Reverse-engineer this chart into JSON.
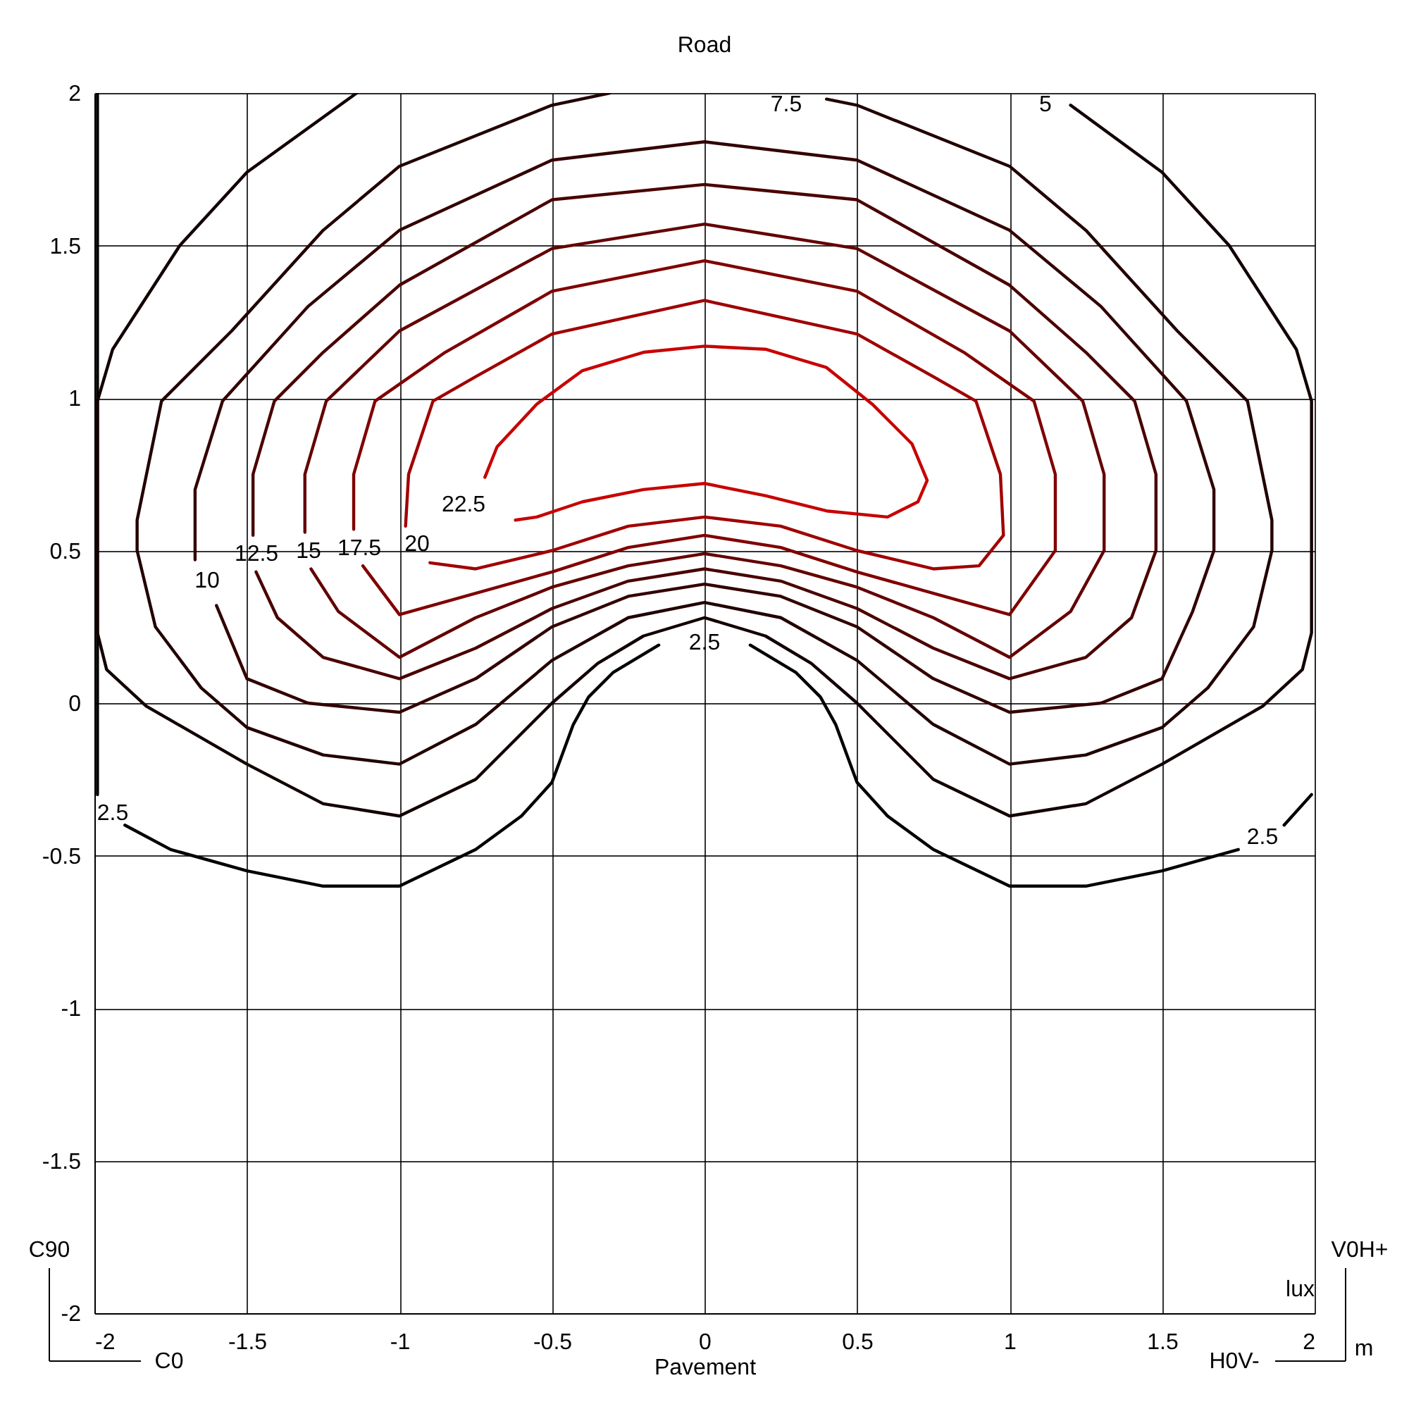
{
  "chart_data": {
    "type": "line",
    "title": "Road",
    "xlabel": "Pavement",
    "xlim": [
      -2,
      2
    ],
    "ylim": [
      -2,
      2
    ],
    "xticks": [
      -2,
      -1.5,
      -1,
      -0.5,
      0,
      0.5,
      1,
      1.5,
      2
    ],
    "yticks": [
      -2,
      -1.5,
      -1,
      -0.5,
      0,
      0.5,
      1,
      1.5,
      2
    ],
    "grid": true,
    "line_style": "solid",
    "series": [
      {
        "color": "#000000",
        "x": [
          -1.99,
          -1.99,
          -1.95,
          -1.9,
          -1.75,
          -1.5,
          -1.25,
          -1.0,
          -0.75,
          -0.6,
          -0.5,
          -0.43,
          -0.38,
          -0.3,
          -0.15,
          0,
          0.15,
          0.3,
          0.38,
          0.43,
          0.5,
          0.6,
          0.75,
          1.0,
          1.25,
          1.5,
          1.75,
          1.83,
          1.9,
          1.99
        ],
        "values": [
          2.0,
          -0.3,
          null,
          -0.4,
          -0.48,
          -0.55,
          -0.6,
          -0.6,
          -0.48,
          -0.37,
          -0.26,
          -0.07,
          0.02,
          0.1,
          0.19,
          null,
          0.19,
          0.1,
          0.02,
          -0.07,
          -0.26,
          -0.37,
          -0.48,
          -0.6,
          -0.6,
          -0.55,
          -0.48,
          null,
          -0.4,
          -0.3
        ]
      },
      {
        "color": "#120000",
        "x": [
          -1.14,
          -1.5,
          -1.72,
          -1.94,
          -1.99,
          -1.99,
          -1.96,
          -1.83,
          -1.5,
          -1.25,
          -1.0,
          -0.75,
          -0.5,
          -0.35,
          -0.2,
          0,
          0.2,
          0.35,
          0.5,
          0.75,
          1.0,
          1.25,
          1.5,
          1.83,
          1.96,
          1.99,
          1.99,
          1.94,
          1.72,
          1.5,
          1.2
        ],
        "values": [
          2.0,
          1.74,
          1.5,
          1.16,
          0.99,
          0.23,
          0.11,
          -0.01,
          -0.2,
          -0.33,
          -0.37,
          -0.25,
          0.0,
          0.13,
          0.22,
          0.28,
          0.22,
          0.13,
          0.0,
          -0.25,
          -0.37,
          -0.33,
          -0.2,
          -0.01,
          0.11,
          0.23,
          0.99,
          1.16,
          1.5,
          1.74,
          1.96
        ]
      },
      {
        "color": "#220000",
        "x": [
          -0.31,
          -0.5,
          -1.0,
          -1.25,
          -1.55,
          -1.78,
          -1.86,
          -1.86,
          -1.8,
          -1.65,
          -1.5,
          -1.25,
          -1.0,
          -0.75,
          -0.5,
          -0.25,
          0,
          0.25,
          0.5,
          0.75,
          1.0,
          1.25,
          1.5,
          1.65,
          1.8,
          1.86,
          1.86,
          1.78,
          1.55,
          1.25,
          1.0,
          0.5,
          0.4
        ],
        "values": [
          2.0,
          1.96,
          1.76,
          1.55,
          1.22,
          0.99,
          0.6,
          0.5,
          0.25,
          0.05,
          -0.08,
          -0.17,
          -0.2,
          -0.07,
          0.14,
          0.28,
          0.33,
          0.28,
          0.14,
          -0.07,
          -0.2,
          -0.17,
          -0.08,
          0.05,
          0.25,
          0.5,
          0.6,
          0.99,
          1.22,
          1.55,
          1.76,
          1.96,
          1.98
        ]
      },
      {
        "color": "#330000",
        "x": [
          -1.6,
          -1.5,
          -1.3,
          -1.0,
          -0.75,
          -0.5,
          -0.25,
          0,
          0.25,
          0.5,
          0.75,
          1.0,
          1.3,
          1.5,
          1.6,
          1.67,
          1.67,
          1.58,
          1.3,
          1.0,
          0.5,
          0,
          -0.5,
          -1.0,
          -1.3,
          -1.58,
          -1.67,
          -1.67
        ],
        "values": [
          0.32,
          0.08,
          0.0,
          -0.03,
          0.08,
          0.25,
          0.35,
          0.39,
          0.35,
          0.25,
          0.08,
          -0.03,
          0.0,
          0.08,
          0.3,
          0.5,
          0.7,
          0.99,
          1.3,
          1.55,
          1.78,
          1.84,
          1.78,
          1.55,
          1.3,
          0.99,
          0.7,
          0.47
        ]
      },
      {
        "color": "#4a0000",
        "x": [
          -1.47,
          -1.4,
          -1.25,
          -1.0,
          -0.75,
          -0.5,
          -0.25,
          0,
          0.25,
          0.5,
          0.75,
          1.0,
          1.25,
          1.4,
          1.48,
          1.48,
          1.41,
          1.25,
          1.0,
          0.5,
          0,
          -0.5,
          -1.0,
          -1.25,
          -1.41,
          -1.48,
          -1.48
        ],
        "values": [
          0.43,
          0.28,
          0.15,
          0.08,
          0.18,
          0.31,
          0.4,
          0.44,
          0.4,
          0.31,
          0.18,
          0.08,
          0.15,
          0.28,
          0.5,
          0.75,
          0.99,
          1.15,
          1.37,
          1.65,
          1.7,
          1.65,
          1.37,
          1.15,
          0.99,
          0.75,
          0.55
        ]
      },
      {
        "color": "#640000",
        "x": [
          -1.29,
          -1.2,
          -1.0,
          -0.75,
          -0.5,
          -0.25,
          0,
          0.25,
          0.5,
          0.75,
          1.0,
          1.2,
          1.31,
          1.31,
          1.24,
          1.0,
          0.5,
          0,
          -0.5,
          -1.0,
          -1.24,
          -1.31,
          -1.31
        ],
        "values": [
          0.44,
          0.3,
          0.15,
          0.28,
          0.38,
          0.45,
          0.49,
          0.45,
          0.38,
          0.28,
          0.15,
          0.3,
          0.5,
          0.75,
          0.99,
          1.22,
          1.49,
          1.57,
          1.49,
          1.22,
          0.99,
          0.75,
          0.56
        ]
      },
      {
        "color": "#800000",
        "x": [
          -1.12,
          -1.0,
          -0.75,
          -0.5,
          -0.25,
          0,
          0.25,
          0.5,
          0.75,
          1.0,
          1.15,
          1.15,
          1.08,
          0.85,
          0.5,
          0,
          -0.5,
          -0.85,
          -1.08,
          -1.15,
          -1.15
        ],
        "values": [
          0.45,
          0.29,
          0.36,
          0.43,
          0.51,
          0.55,
          0.51,
          0.43,
          0.36,
          0.29,
          0.5,
          0.75,
          0.99,
          1.15,
          1.35,
          1.45,
          1.35,
          1.15,
          0.99,
          0.75,
          0.57
        ]
      },
      {
        "color": "#a00000",
        "x": [
          -0.9,
          -0.75,
          -0.5,
          -0.25,
          0,
          0.25,
          0.5,
          0.75,
          0.9,
          0.98,
          0.97,
          0.89,
          0.75,
          0.5,
          0,
          -0.5,
          -0.75,
          -0.89,
          -0.97,
          -0.98
        ],
        "values": [
          0.46,
          0.44,
          0.5,
          0.58,
          0.61,
          0.58,
          0.5,
          0.44,
          0.45,
          0.55,
          0.75,
          0.99,
          1.07,
          1.21,
          1.32,
          1.21,
          1.07,
          0.99,
          0.75,
          0.58
        ]
      },
      {
        "color": "#c80000",
        "x": [
          -0.72,
          -0.68,
          -0.55,
          -0.4,
          -0.2,
          0,
          0.2,
          0.4,
          0.55,
          0.68,
          0.73,
          0.7,
          0.6,
          0.4,
          0.2,
          0,
          -0.2,
          -0.4,
          -0.55,
          -0.62
        ],
        "values": [
          0.74,
          0.84,
          0.98,
          1.09,
          1.15,
          1.17,
          1.16,
          1.1,
          0.98,
          0.85,
          0.73,
          0.66,
          0.61,
          0.63,
          0.68,
          0.72,
          0.7,
          0.66,
          0.61,
          0.6
        ]
      }
    ],
    "annotations": [
      "7.5",
      "5",
      "22.5",
      "20",
      "17.5",
      "15",
      "12.5",
      "10",
      "2.5",
      "2.5",
      "2.5",
      "C90",
      "C0",
      "V0H+",
      "H0V-",
      "lux",
      "m"
    ]
  }
}
